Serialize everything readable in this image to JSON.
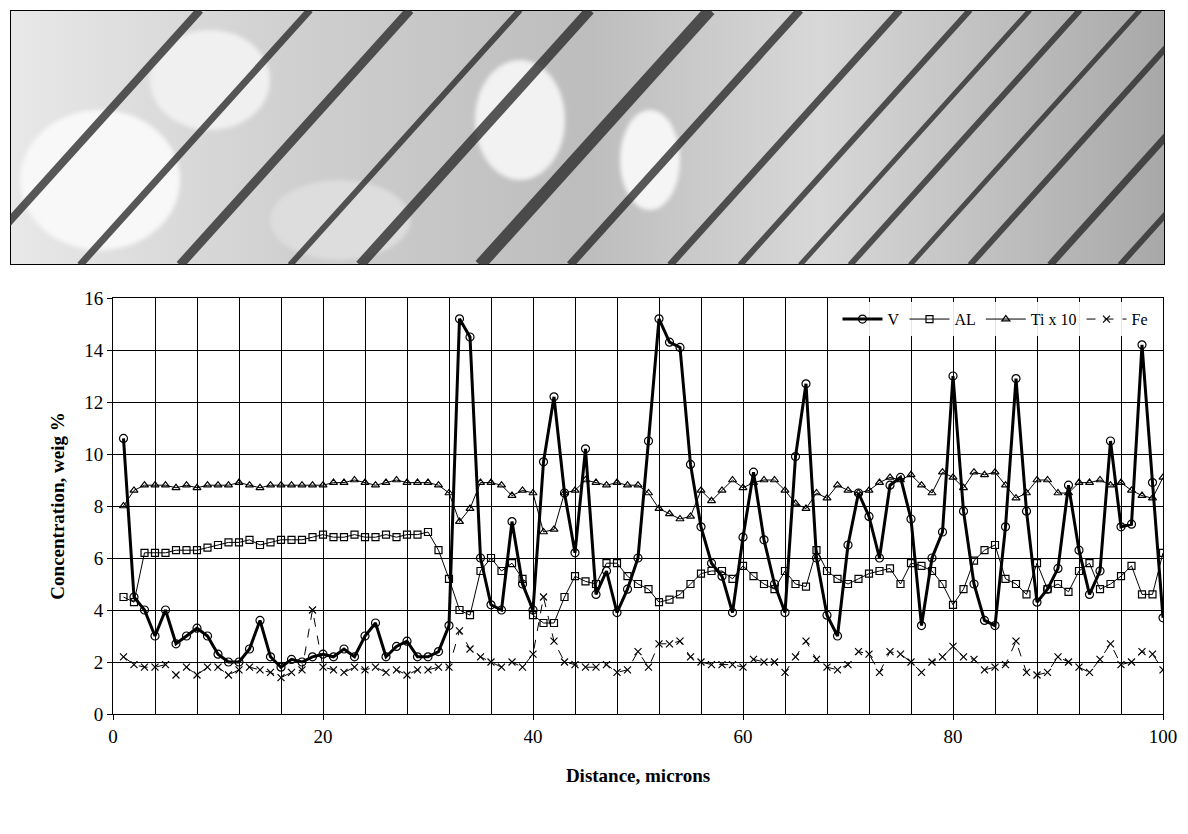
{
  "chart_data": {
    "type": "line",
    "xlabel": "Distance, microns",
    "ylabel": "Concentration, weig %",
    "x": [
      1,
      2,
      3,
      4,
      5,
      6,
      7,
      8,
      9,
      10,
      11,
      12,
      13,
      14,
      15,
      16,
      17,
      18,
      19,
      20,
      21,
      22,
      23,
      24,
      25,
      26,
      27,
      28,
      29,
      30,
      31,
      32,
      33,
      34,
      35,
      36,
      37,
      38,
      39,
      40,
      41,
      42,
      43,
      44,
      45,
      46,
      47,
      48,
      49,
      50,
      51,
      52,
      53,
      54,
      55,
      56,
      57,
      58,
      59,
      60,
      61,
      62,
      63,
      64,
      65,
      66,
      67,
      68,
      69,
      70,
      71,
      72,
      73,
      74,
      75,
      76,
      77,
      78,
      79,
      80,
      81,
      82,
      83,
      84,
      85,
      86,
      87,
      88,
      89,
      90,
      91,
      92,
      93,
      94,
      95,
      96,
      97,
      98,
      99,
      100
    ],
    "series": [
      {
        "name": "V",
        "color": "#000000",
        "marker": "circle-open",
        "line_style": "solid",
        "values": [
          10.6,
          4.5,
          4.0,
          3.0,
          4.0,
          2.7,
          3.0,
          3.3,
          3.0,
          2.3,
          2.0,
          2.0,
          2.5,
          3.6,
          2.2,
          1.8,
          2.1,
          2.0,
          2.2,
          2.3,
          2.2,
          2.5,
          2.2,
          3.0,
          3.5,
          2.2,
          2.6,
          2.8,
          2.2,
          2.2,
          2.4,
          3.4,
          15.2,
          14.5,
          6.0,
          4.2,
          4.0,
          7.4,
          5.0,
          4.0,
          9.7,
          12.2,
          8.5,
          6.2,
          10.2,
          4.6,
          5.5,
          3.9,
          4.8,
          6.0,
          10.5,
          15.2,
          14.3,
          14.1,
          9.6,
          7.2,
          5.8,
          5.3,
          3.9,
          6.8,
          9.3,
          6.7,
          5.0,
          3.9,
          9.9,
          12.7,
          6.0,
          3.8,
          3.0,
          6.5,
          8.5,
          7.6,
          6.0,
          8.8,
          9.1,
          7.5,
          3.4,
          6.0,
          7.0,
          13.0,
          7.8,
          5.0,
          3.6,
          3.4,
          7.2,
          12.9,
          7.8,
          4.3,
          4.8,
          5.6,
          8.8,
          6.3,
          4.6,
          5.5,
          10.5,
          7.2,
          7.3,
          14.2,
          8.9,
          3.7
        ]
      },
      {
        "name": "AL",
        "color": "#000000",
        "marker": "square-open",
        "line_style": "solid",
        "values": [
          4.5,
          4.3,
          6.2,
          6.2,
          6.2,
          6.3,
          6.3,
          6.3,
          6.4,
          6.5,
          6.6,
          6.6,
          6.7,
          6.5,
          6.6,
          6.7,
          6.7,
          6.7,
          6.8,
          6.9,
          6.8,
          6.8,
          6.9,
          6.8,
          6.8,
          6.9,
          6.8,
          6.9,
          6.9,
          7.0,
          6.3,
          5.2,
          4.0,
          3.8,
          5.5,
          6.0,
          5.5,
          5.8,
          5.2,
          3.8,
          3.5,
          3.5,
          4.5,
          5.3,
          5.1,
          5.0,
          5.8,
          5.8,
          5.3,
          5.0,
          4.8,
          4.3,
          4.4,
          4.6,
          5.0,
          5.4,
          5.5,
          5.5,
          5.2,
          5.7,
          5.3,
          5.0,
          4.8,
          5.5,
          5.0,
          4.9,
          6.3,
          5.5,
          5.2,
          5.0,
          5.2,
          5.4,
          5.5,
          5.6,
          5.0,
          5.8,
          5.7,
          5.5,
          5.0,
          4.2,
          4.8,
          5.9,
          6.3,
          6.5,
          5.2,
          5.0,
          4.6,
          5.8,
          4.8,
          5.0,
          4.7,
          5.5,
          5.8,
          4.8,
          5.0,
          5.3,
          5.7,
          4.6,
          4.6,
          6.2
        ]
      },
      {
        "name": "Ti x 10",
        "color": "#000000",
        "marker": "triangle-up-open",
        "line_style": "solid",
        "values": [
          8.0,
          8.6,
          8.8,
          8.8,
          8.8,
          8.7,
          8.8,
          8.7,
          8.8,
          8.8,
          8.8,
          8.9,
          8.8,
          8.7,
          8.8,
          8.8,
          8.8,
          8.8,
          8.8,
          8.8,
          8.9,
          8.9,
          9.0,
          8.9,
          8.8,
          8.9,
          9.0,
          8.9,
          8.9,
          8.9,
          8.8,
          8.5,
          7.4,
          7.9,
          8.9,
          8.9,
          8.8,
          8.4,
          8.6,
          8.5,
          7.0,
          7.1,
          8.5,
          8.6,
          9.0,
          8.9,
          8.8,
          8.9,
          8.8,
          8.8,
          8.5,
          7.9,
          7.7,
          7.5,
          7.6,
          8.6,
          8.2,
          8.6,
          9.0,
          8.7,
          8.9,
          9.0,
          9.0,
          8.6,
          8.1,
          7.9,
          8.5,
          8.3,
          8.8,
          8.6,
          8.5,
          8.6,
          8.9,
          9.1,
          9.0,
          9.2,
          8.8,
          8.5,
          9.3,
          9.1,
          8.7,
          9.3,
          9.2,
          9.3,
          8.8,
          8.3,
          8.5,
          9.0,
          9.0,
          8.5,
          8.5,
          8.9,
          8.9,
          9.0,
          8.8,
          8.9,
          8.6,
          8.4,
          8.3,
          9.1
        ]
      },
      {
        "name": "Fe",
        "color": "#000000",
        "marker": "x-thin-open",
        "line_style": "dash",
        "values": [
          2.2,
          1.9,
          1.8,
          1.8,
          1.9,
          1.5,
          1.8,
          1.5,
          1.8,
          1.8,
          1.5,
          1.7,
          1.8,
          1.7,
          1.6,
          1.4,
          1.6,
          1.7,
          4.0,
          1.8,
          1.7,
          1.6,
          1.8,
          1.7,
          1.8,
          1.6,
          1.7,
          1.5,
          1.7,
          1.7,
          1.8,
          1.8,
          3.2,
          2.5,
          2.2,
          2.0,
          1.8,
          2.0,
          1.8,
          2.3,
          4.5,
          2.8,
          2.0,
          1.9,
          1.8,
          1.8,
          1.9,
          1.6,
          1.7,
          2.4,
          1.8,
          2.7,
          2.7,
          2.8,
          2.2,
          2.0,
          1.9,
          1.9,
          1.9,
          1.8,
          2.1,
          2.0,
          2.0,
          1.6,
          2.2,
          2.8,
          2.1,
          1.8,
          1.7,
          1.9,
          2.4,
          2.3,
          1.6,
          2.4,
          2.3,
          2.0,
          1.6,
          2.0,
          2.2,
          2.6,
          2.2,
          2.1,
          1.7,
          1.8,
          1.9,
          2.8,
          1.6,
          1.5,
          1.6,
          2.2,
          2.0,
          1.8,
          1.6,
          2.1,
          2.7,
          1.9,
          2.0,
          2.4,
          2.3,
          1.7
        ]
      }
    ],
    "xlim": [
      0,
      100
    ],
    "xticks": [
      0,
      20,
      40,
      60,
      80,
      100
    ],
    "ylim": [
      0,
      16
    ],
    "yticks": [
      0,
      2,
      4,
      6,
      8,
      10,
      12,
      14,
      16
    ],
    "grid": true,
    "legend": "top right"
  }
}
